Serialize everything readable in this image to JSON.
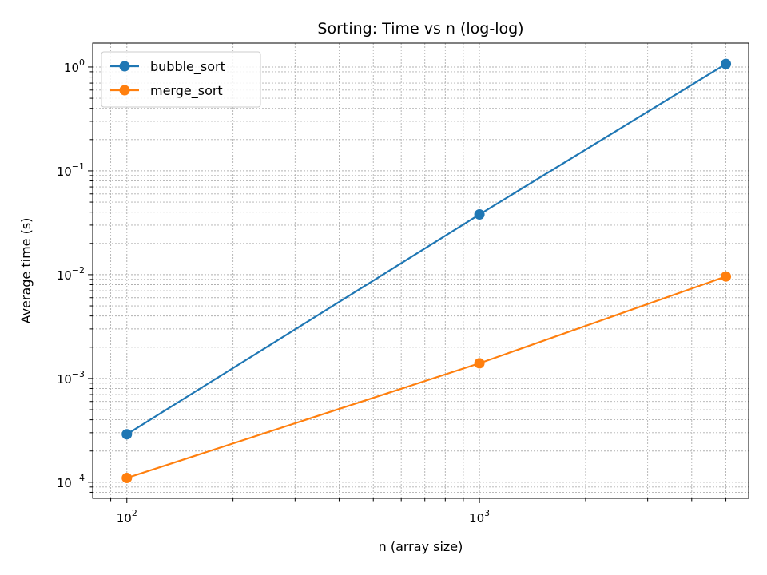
{
  "chart_data": {
    "type": "line",
    "title": "Sorting: Time vs n (log-log)",
    "xlabel": "n (array size)",
    "ylabel": "Average time (s)",
    "x_scale": "log",
    "y_scale": "log",
    "xlim": [
      80,
      5800
    ],
    "ylim": [
      7e-05,
      1.7
    ],
    "grid": "major and minor, dotted",
    "legend_position": "top-left",
    "x_ticks": [
      {
        "value": 100,
        "base": "10",
        "exp": "2"
      },
      {
        "value": 1000,
        "base": "10",
        "exp": "3"
      }
    ],
    "y_ticks": [
      {
        "value": 0.0001,
        "base": "10",
        "exp": "−4"
      },
      {
        "value": 0.001,
        "base": "10",
        "exp": "−3"
      },
      {
        "value": 0.01,
        "base": "10",
        "exp": "−2"
      },
      {
        "value": 0.1,
        "base": "10",
        "exp": "−1"
      },
      {
        "value": 1,
        "base": "10",
        "exp": "0"
      }
    ],
    "x": [
      100,
      1000,
      5000
    ],
    "series": [
      {
        "name": "bubble_sort",
        "color": "#1f77b4",
        "values": [
          0.00029,
          0.038,
          1.07
        ]
      },
      {
        "name": "merge_sort",
        "color": "#ff7f0e",
        "values": [
          0.00011,
          0.0014,
          0.0096
        ]
      }
    ]
  }
}
